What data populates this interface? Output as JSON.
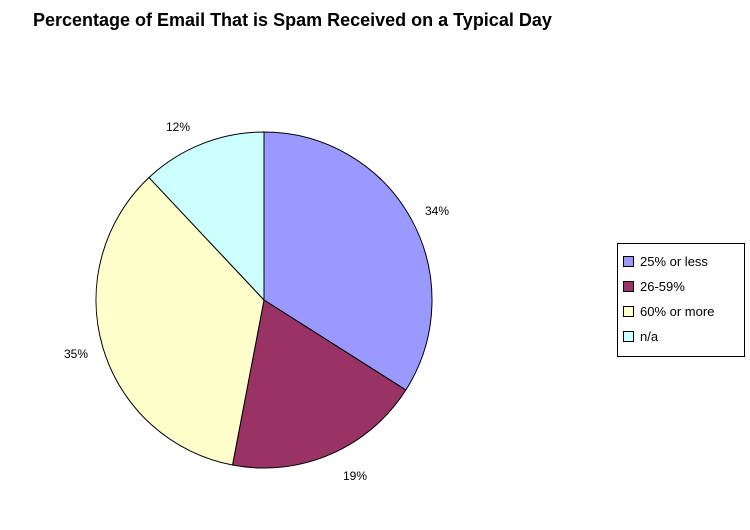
{
  "chart_data": {
    "type": "pie",
    "title": "Percentage of Email That is Spam Received on a Typical Day",
    "categories": [
      "25% or less",
      "26-59%",
      "60% or more",
      "n/a"
    ],
    "values": [
      34,
      19,
      35,
      12
    ],
    "data_labels": [
      "34%",
      "19%",
      "35%",
      "12%"
    ],
    "colors": [
      "#9999ff",
      "#993366",
      "#ffffcc",
      "#ccffff"
    ],
    "start_angle_deg": 0,
    "direction": "clockwise",
    "legend_position": "right"
  }
}
